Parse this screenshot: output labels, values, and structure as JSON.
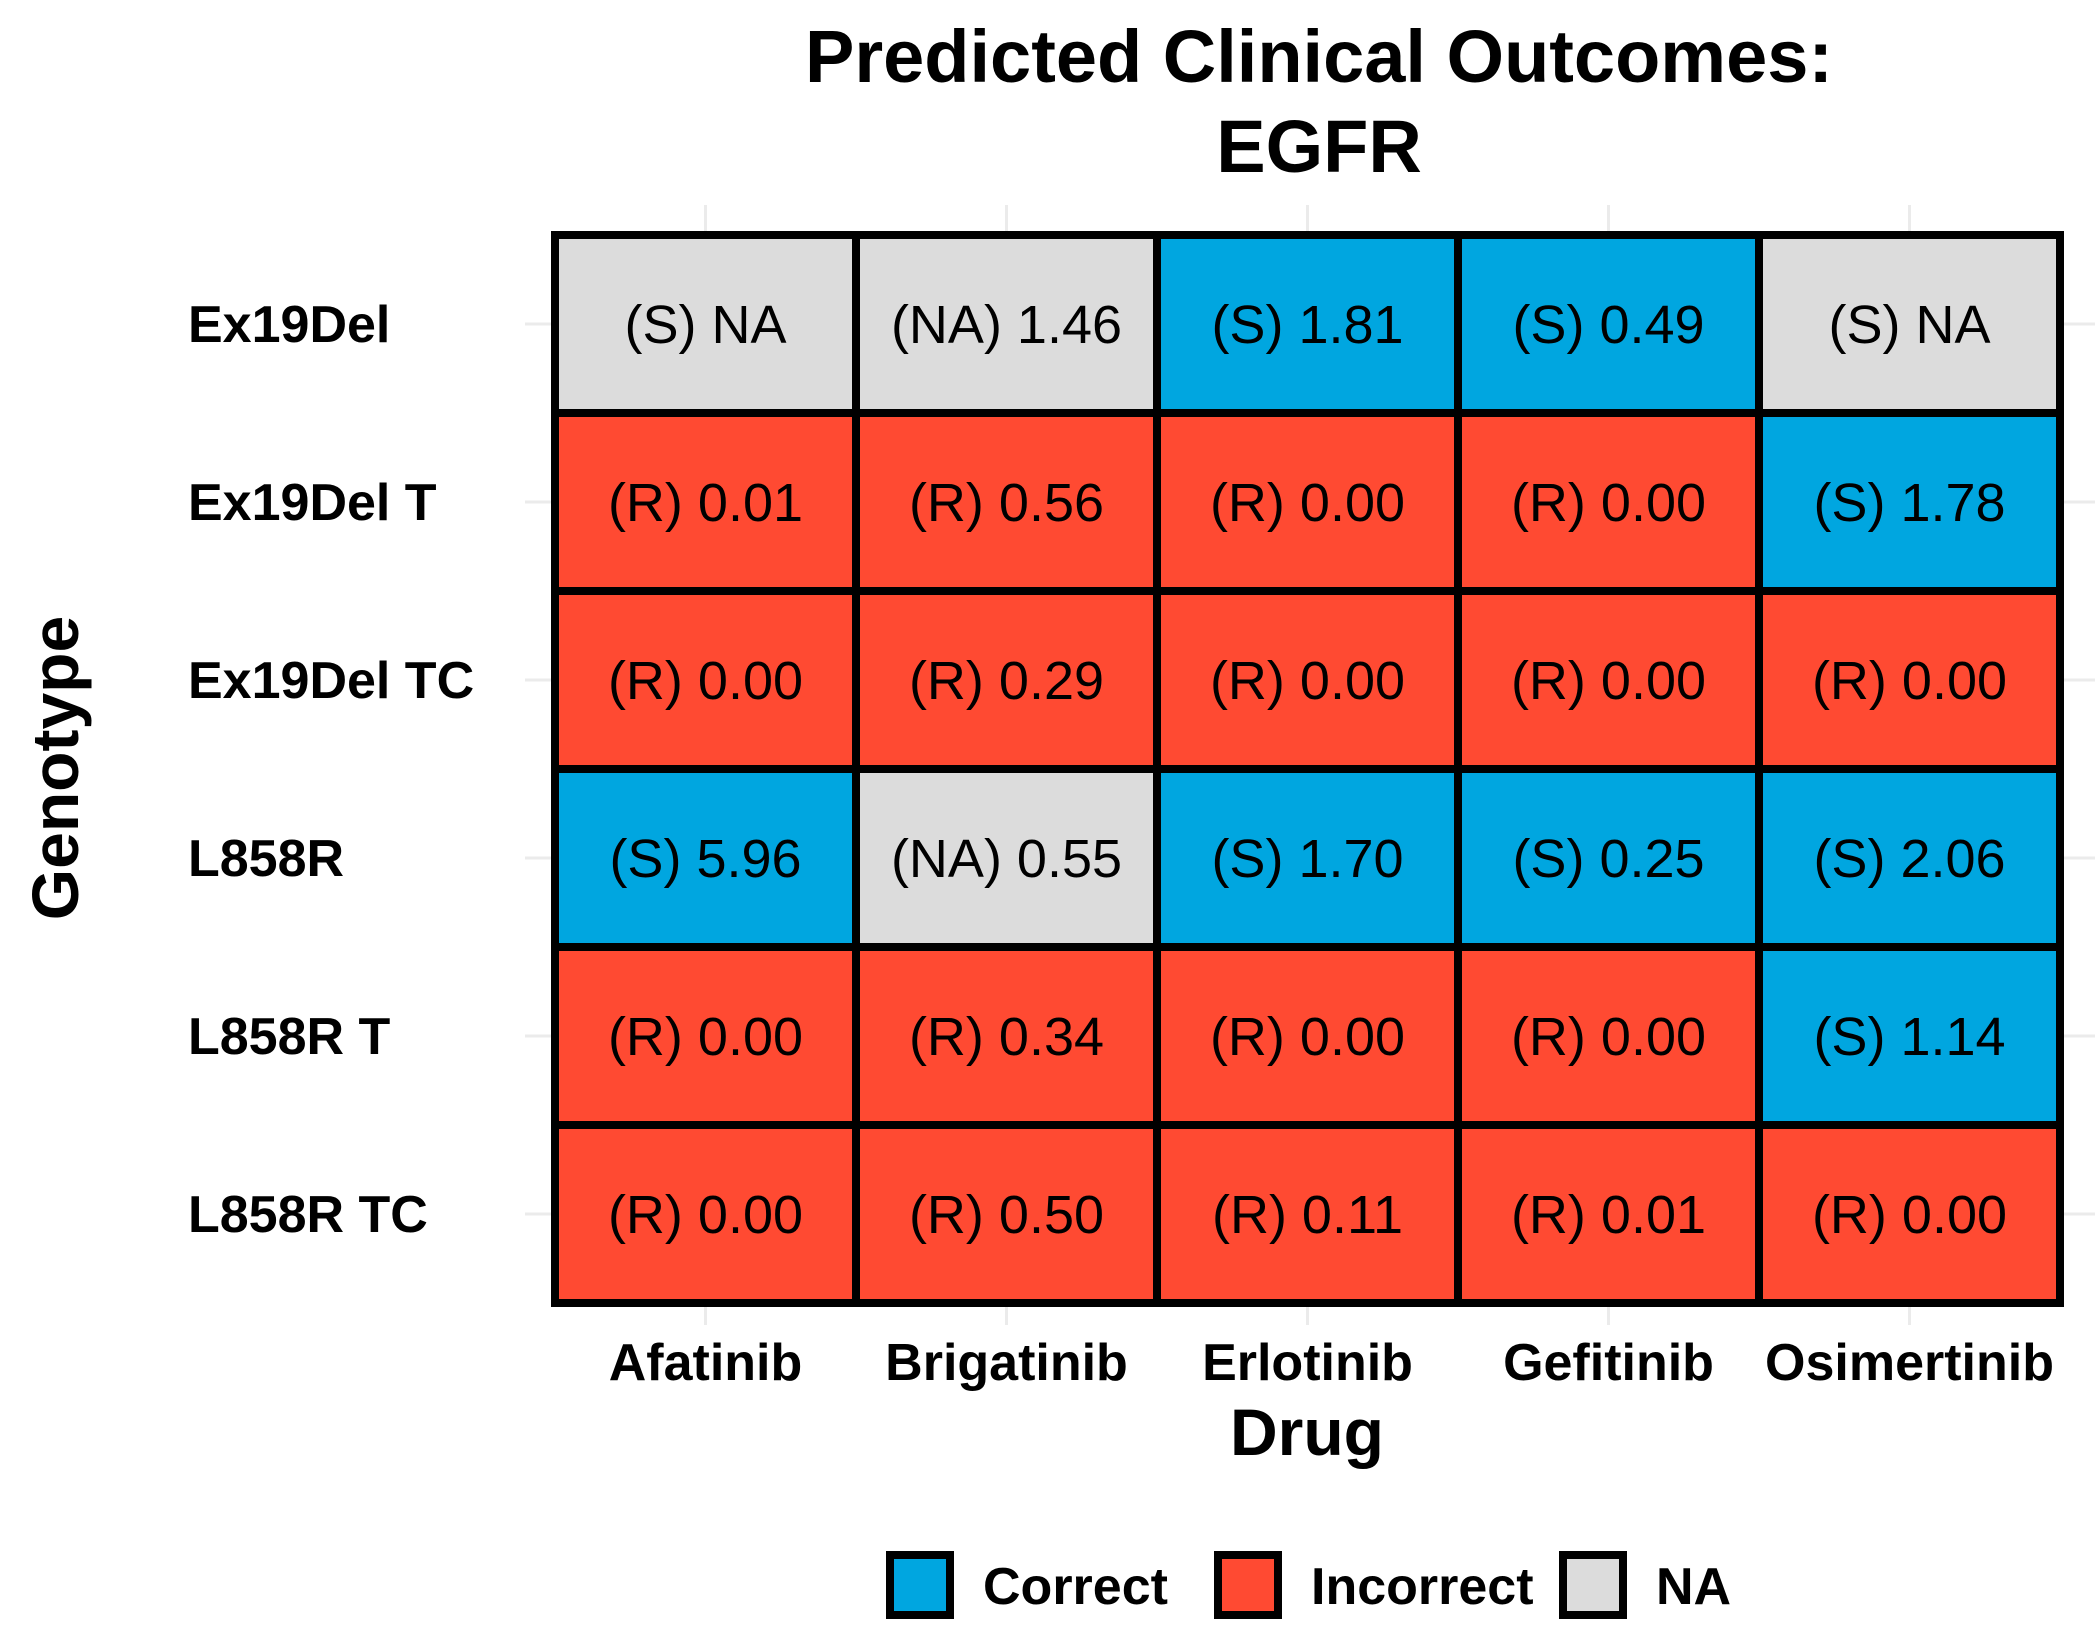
{
  "chart_data": {
    "type": "heatmap",
    "title": [
      "Predicted Clinical Outcomes:",
      "EGFR"
    ],
    "xlabel": "Drug",
    "ylabel": "Genotype",
    "x_categories": [
      "Afatinib",
      "Brigatinib",
      "Erlotinib",
      "Gefitinib",
      "Osimertinib"
    ],
    "y_categories": [
      "Ex19Del",
      "Ex19Del T",
      "Ex19Del TC",
      "L858R",
      "L858R T",
      "L858R TC"
    ],
    "legend": {
      "placement": "bottom",
      "entries": [
        {
          "name": "Correct",
          "color": "#00a6e0"
        },
        {
          "name": "Incorrect",
          "color": "#ff4a32"
        },
        {
          "name": "NA",
          "color": "#dcdcdc"
        }
      ]
    },
    "cells": [
      [
        {
          "label": "(S) NA",
          "outcome": "NA"
        },
        {
          "label": "(NA) 1.46",
          "outcome": "NA"
        },
        {
          "label": "(S) 1.81",
          "outcome": "Correct"
        },
        {
          "label": "(S) 0.49",
          "outcome": "Correct"
        },
        {
          "label": "(S) NA",
          "outcome": "NA"
        }
      ],
      [
        {
          "label": "(R) 0.01",
          "outcome": "Incorrect"
        },
        {
          "label": "(R) 0.56",
          "outcome": "Incorrect"
        },
        {
          "label": "(R) 0.00",
          "outcome": "Incorrect"
        },
        {
          "label": "(R) 0.00",
          "outcome": "Incorrect"
        },
        {
          "label": "(S) 1.78",
          "outcome": "Correct"
        }
      ],
      [
        {
          "label": "(R) 0.00",
          "outcome": "Incorrect"
        },
        {
          "label": "(R) 0.29",
          "outcome": "Incorrect"
        },
        {
          "label": "(R) 0.00",
          "outcome": "Incorrect"
        },
        {
          "label": "(R) 0.00",
          "outcome": "Incorrect"
        },
        {
          "label": "(R) 0.00",
          "outcome": "Incorrect"
        }
      ],
      [
        {
          "label": "(S) 5.96",
          "outcome": "Correct"
        },
        {
          "label": "(NA) 0.55",
          "outcome": "NA"
        },
        {
          "label": "(S) 1.70",
          "outcome": "Correct"
        },
        {
          "label": "(S) 0.25",
          "outcome": "Correct"
        },
        {
          "label": "(S) 2.06",
          "outcome": "Correct"
        }
      ],
      [
        {
          "label": "(R) 0.00",
          "outcome": "Incorrect"
        },
        {
          "label": "(R) 0.34",
          "outcome": "Incorrect"
        },
        {
          "label": "(R) 0.00",
          "outcome": "Incorrect"
        },
        {
          "label": "(R) 0.00",
          "outcome": "Incorrect"
        },
        {
          "label": "(S) 1.14",
          "outcome": "Correct"
        }
      ],
      [
        {
          "label": "(R) 0.00",
          "outcome": "Incorrect"
        },
        {
          "label": "(R) 0.50",
          "outcome": "Incorrect"
        },
        {
          "label": "(R) 0.11",
          "outcome": "Incorrect"
        },
        {
          "label": "(R) 0.01",
          "outcome": "Incorrect"
        },
        {
          "label": "(R) 0.00",
          "outcome": "Incorrect"
        }
      ]
    ]
  }
}
